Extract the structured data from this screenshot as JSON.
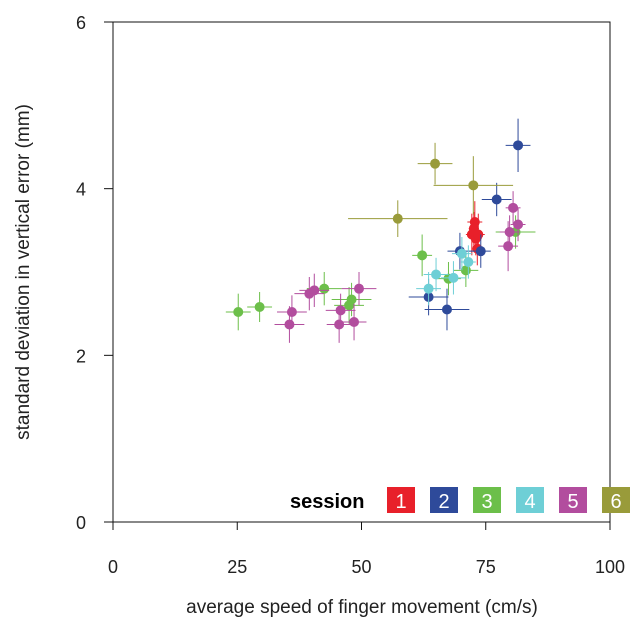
{
  "chart_data": {
    "type": "scatter",
    "title": "",
    "xlabel": "average speed of finger movement (cm/s)",
    "ylabel": "standard deviation in vertical error (mm)",
    "xlim": [
      0,
      100
    ],
    "ylim": [
      0,
      6
    ],
    "xticks": [
      "0",
      "25",
      "50",
      "75",
      "100"
    ],
    "yticks": [
      "0",
      "2",
      "4",
      "6"
    ],
    "grid": false,
    "legend": {
      "title": "session",
      "placement": "bottom-right"
    },
    "series": [
      {
        "name": "1",
        "color": "#e8202a",
        "points": [
          {
            "x": 72.2,
            "y": 3.45,
            "xerr": 1.2,
            "yerr": 0.25
          },
          {
            "x": 72.8,
            "y": 3.6,
            "xerr": 1.5,
            "yerr": 0.25
          },
          {
            "x": 73.0,
            "y": 3.4,
            "xerr": 1.2,
            "yerr": 0.2
          },
          {
            "x": 73.3,
            "y": 3.28,
            "xerr": 1.0,
            "yerr": 0.2
          },
          {
            "x": 72.6,
            "y": 3.52,
            "xerr": 1.0,
            "yerr": 0.2
          },
          {
            "x": 73.5,
            "y": 3.45,
            "xerr": 1.3,
            "yerr": 0.25
          }
        ]
      },
      {
        "name": "2",
        "color": "#2e4a9a",
        "points": [
          {
            "x": 81.5,
            "y": 4.52,
            "xerr": 2.5,
            "yerr": 0.32
          },
          {
            "x": 77.2,
            "y": 3.87,
            "xerr": 3.0,
            "yerr": 0.2
          },
          {
            "x": 69.8,
            "y": 3.25,
            "xerr": 2.5,
            "yerr": 0.22
          },
          {
            "x": 74.0,
            "y": 3.25,
            "xerr": 2.0,
            "yerr": 0.2
          },
          {
            "x": 63.5,
            "y": 2.7,
            "xerr": 4.0,
            "yerr": 0.22
          },
          {
            "x": 67.2,
            "y": 2.55,
            "xerr": 4.5,
            "yerr": 0.25
          }
        ]
      },
      {
        "name": "3",
        "color": "#6cbf4a",
        "points": [
          {
            "x": 25.2,
            "y": 2.52,
            "xerr": 2.5,
            "yerr": 0.22
          },
          {
            "x": 29.5,
            "y": 2.58,
            "xerr": 2.5,
            "yerr": 0.18
          },
          {
            "x": 42.5,
            "y": 2.8,
            "xerr": 3.5,
            "yerr": 0.2
          },
          {
            "x": 47.5,
            "y": 2.6,
            "xerr": 3.0,
            "yerr": 0.22
          },
          {
            "x": 48.0,
            "y": 2.67,
            "xerr": 4.0,
            "yerr": 0.2
          },
          {
            "x": 62.2,
            "y": 3.2,
            "xerr": 2.0,
            "yerr": 0.25
          },
          {
            "x": 67.5,
            "y": 2.92,
            "xerr": 2.5,
            "yerr": 0.2
          },
          {
            "x": 71.0,
            "y": 3.02,
            "xerr": 2.5,
            "yerr": 0.2
          },
          {
            "x": 81.0,
            "y": 3.48,
            "xerr": 4.0,
            "yerr": 0.2
          }
        ]
      },
      {
        "name": "4",
        "color": "#6ecfd6",
        "points": [
          {
            "x": 63.5,
            "y": 2.8,
            "xerr": 2.5,
            "yerr": 0.2
          },
          {
            "x": 65.0,
            "y": 2.97,
            "xerr": 2.5,
            "yerr": 0.2
          },
          {
            "x": 68.5,
            "y": 2.93,
            "xerr": 2.5,
            "yerr": 0.2
          },
          {
            "x": 71.5,
            "y": 3.12,
            "xerr": 1.5,
            "yerr": 0.2
          },
          {
            "x": 70.2,
            "y": 3.22,
            "xerr": 2.0,
            "yerr": 0.2
          }
        ]
      },
      {
        "name": "5",
        "color": "#b24d9e",
        "points": [
          {
            "x": 35.5,
            "y": 2.37,
            "xerr": 3.0,
            "yerr": 0.22
          },
          {
            "x": 36.0,
            "y": 2.52,
            "xerr": 3.0,
            "yerr": 0.2
          },
          {
            "x": 39.5,
            "y": 2.74,
            "xerr": 3.0,
            "yerr": 0.2
          },
          {
            "x": 40.5,
            "y": 2.78,
            "xerr": 3.0,
            "yerr": 0.2
          },
          {
            "x": 45.5,
            "y": 2.37,
            "xerr": 2.5,
            "yerr": 0.22
          },
          {
            "x": 45.8,
            "y": 2.54,
            "xerr": 3.0,
            "yerr": 0.2
          },
          {
            "x": 48.5,
            "y": 2.4,
            "xerr": 2.5,
            "yerr": 0.22
          },
          {
            "x": 49.5,
            "y": 2.8,
            "xerr": 3.5,
            "yerr": 0.2
          },
          {
            "x": 79.5,
            "y": 3.31,
            "xerr": 2.0,
            "yerr": 0.3
          },
          {
            "x": 79.8,
            "y": 3.48,
            "xerr": 2.0,
            "yerr": 0.2
          },
          {
            "x": 80.5,
            "y": 3.77,
            "xerr": 1.5,
            "yerr": 0.2
          },
          {
            "x": 81.5,
            "y": 3.57,
            "xerr": 1.5,
            "yerr": 0.2
          }
        ]
      },
      {
        "name": "6",
        "color": "#999b3a",
        "points": [
          {
            "x": 64.8,
            "y": 4.3,
            "xerr": 3.5,
            "yerr": 0.25
          },
          {
            "x": 72.5,
            "y": 4.04,
            "xerr": 8.0,
            "yerr": 0.35
          },
          {
            "x": 57.3,
            "y": 3.64,
            "xerr": 10.0,
            "yerr": 0.22
          }
        ]
      }
    ]
  }
}
